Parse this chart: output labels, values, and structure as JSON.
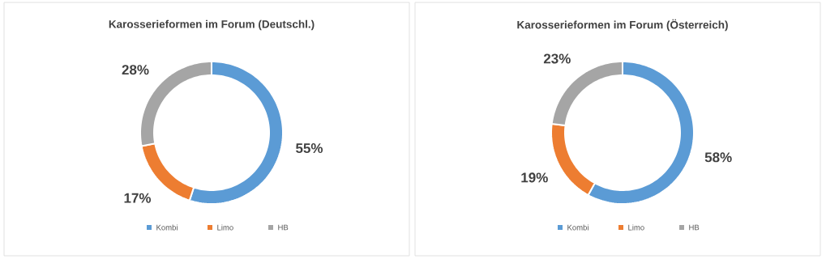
{
  "chart_data": [
    {
      "type": "donut",
      "title": "Karosserieformen im Forum (Deutschl.)",
      "categories": [
        "Kombi",
        "Limo",
        "HB"
      ],
      "values": [
        55,
        17,
        28
      ],
      "colors": [
        "#5b9bd5",
        "#ed7d31",
        "#a5a5a5"
      ],
      "value_labels": [
        "55%",
        "17%",
        "28%"
      ],
      "legend": "bottom"
    },
    {
      "type": "donut",
      "title": "Karosserieformen im Forum (Österreich)",
      "categories": [
        "Kombi",
        "Limo",
        "HB"
      ],
      "values": [
        58,
        19,
        23
      ],
      "colors": [
        "#5b9bd5",
        "#ed7d31",
        "#a5a5a5"
      ],
      "value_labels": [
        "58%",
        "19%",
        "23%"
      ],
      "legend": "bottom"
    }
  ]
}
